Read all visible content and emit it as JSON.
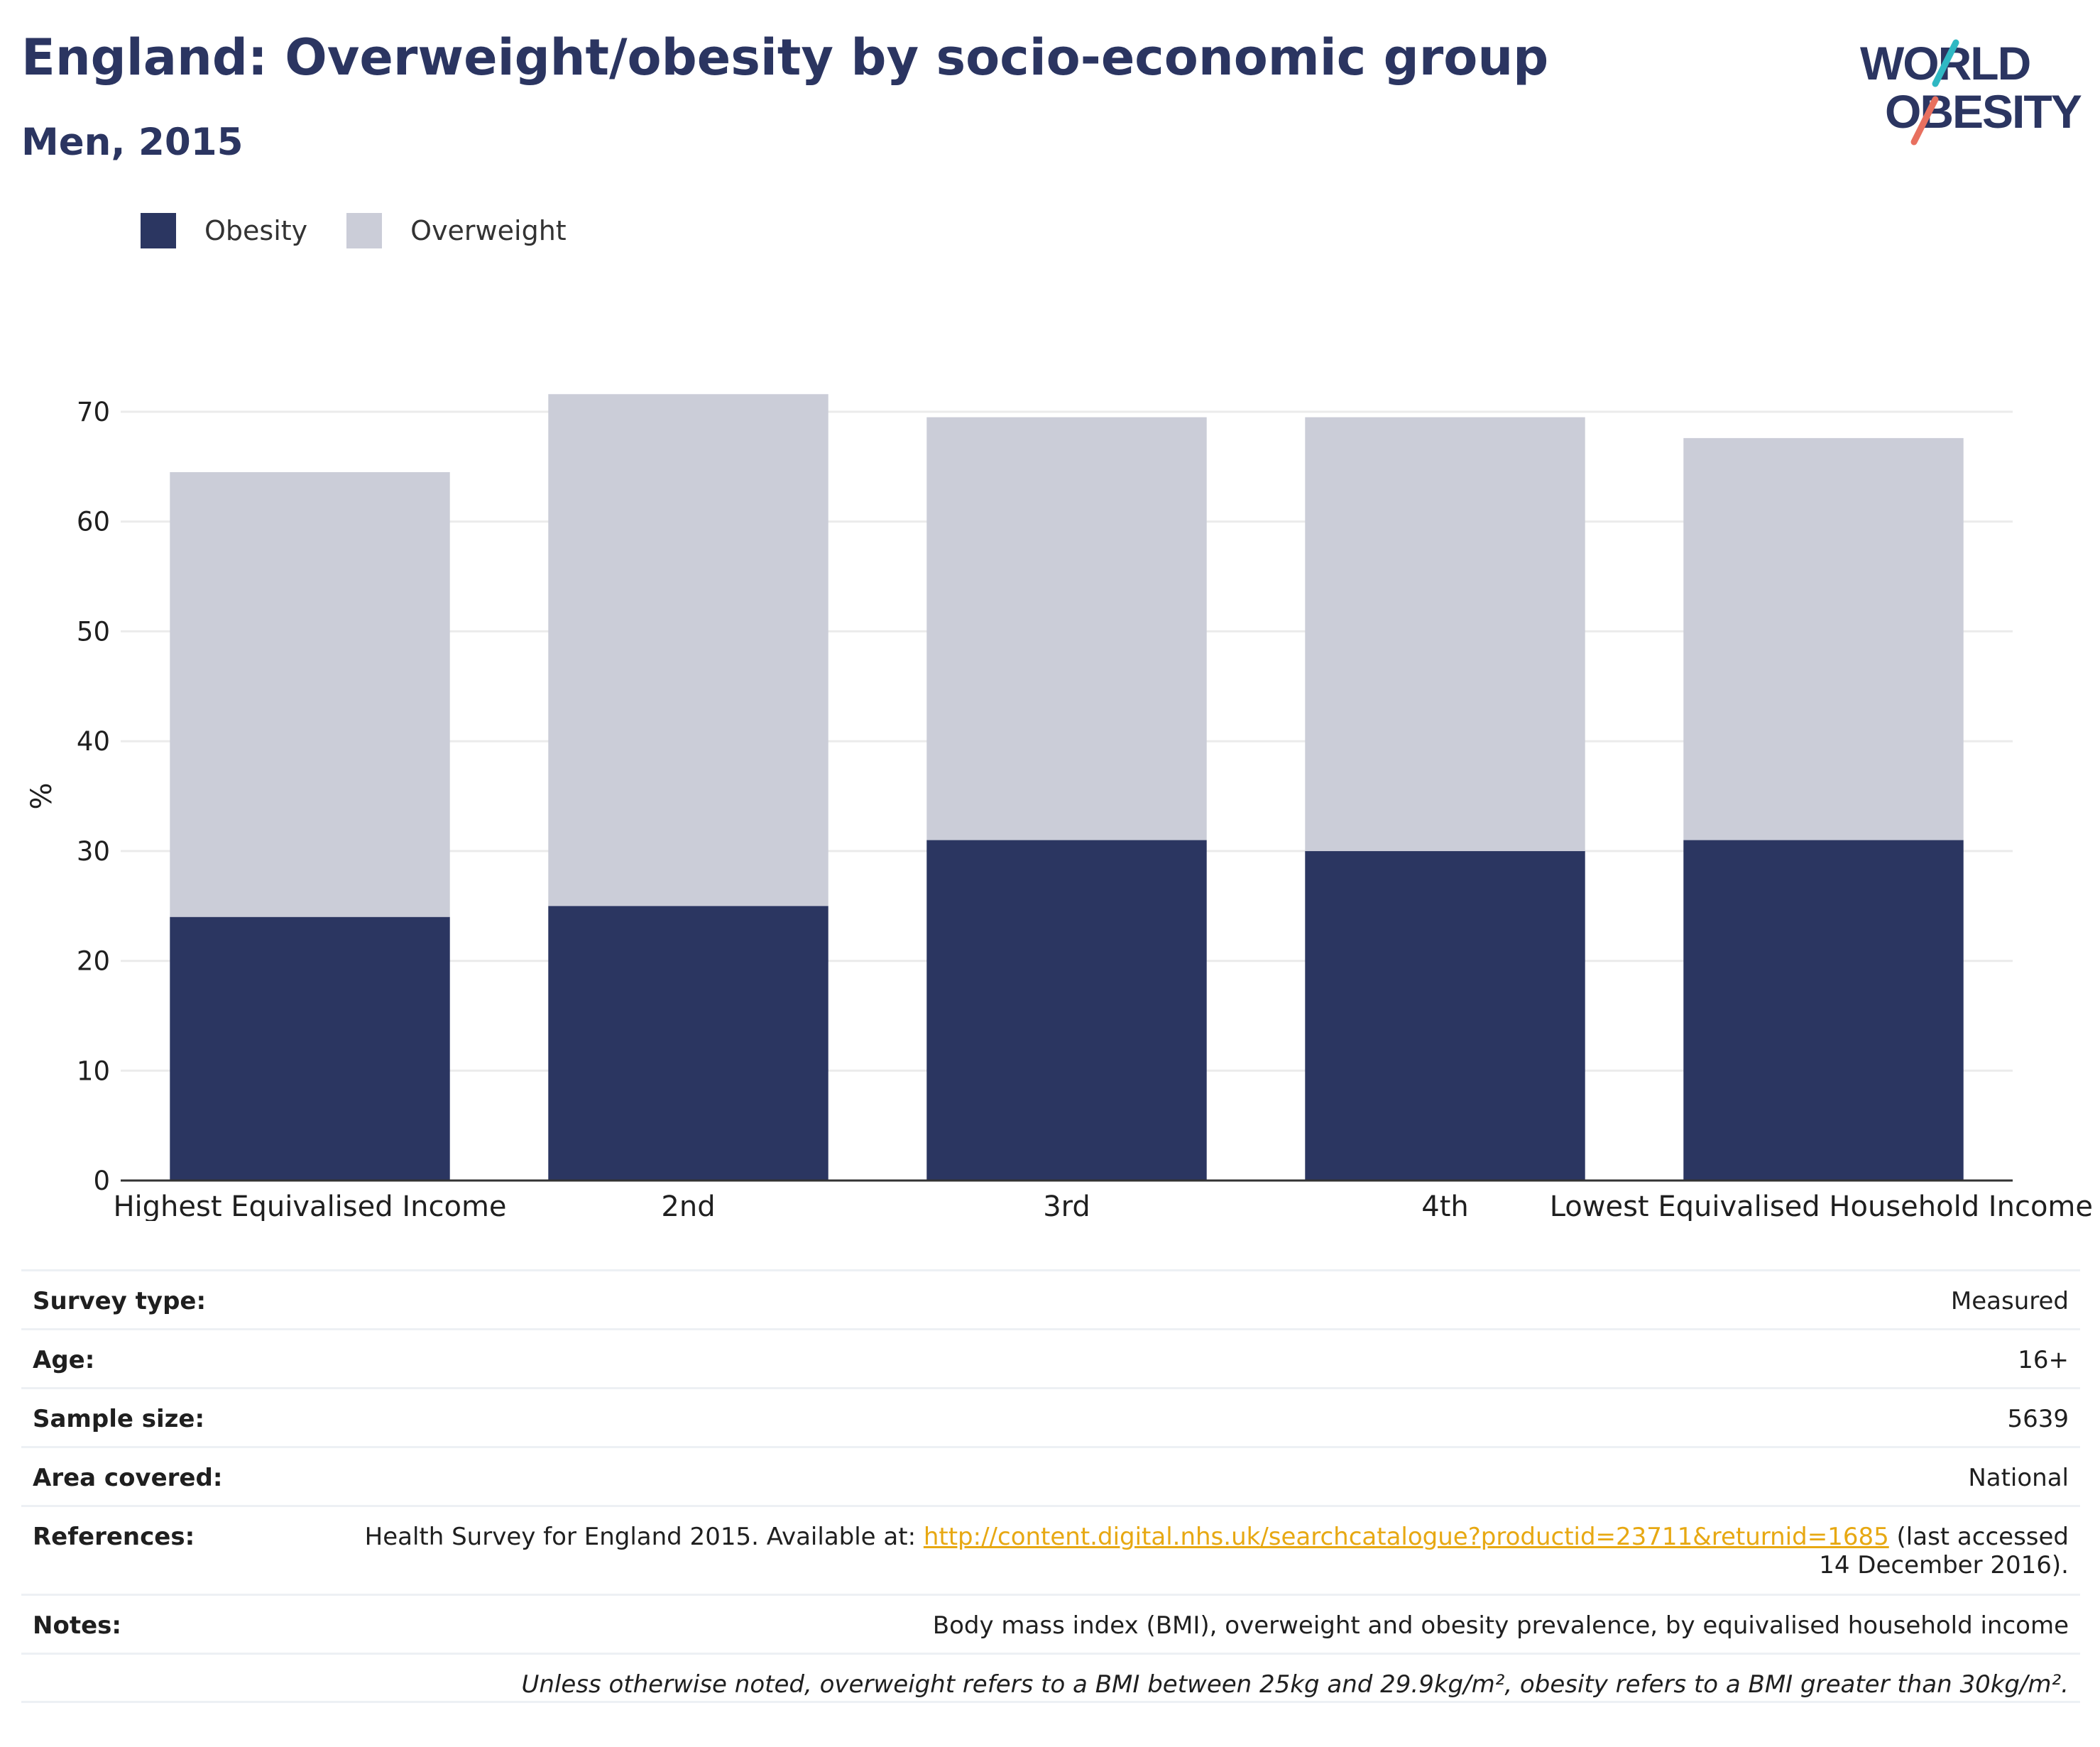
{
  "header": {
    "title": "England: Overweight/obesity by socio-economic group",
    "subtitle": "Men, 2015",
    "logo_text_top": "WORLD",
    "logo_text_bottom": "OBESITY"
  },
  "colors": {
    "obesity": "#2b3661",
    "overweight": "#cbcdd8",
    "text": "#283461",
    "link": "#e7a812",
    "logo_teal": "#2fb8c3",
    "logo_coral": "#e8705f"
  },
  "chart_data": {
    "type": "bar",
    "stacked": true,
    "categories": [
      "Highest Equivalised Income",
      "2nd",
      "3rd",
      "4th",
      "Lowest Equivalised Household Income"
    ],
    "series": [
      {
        "name": "Obesity",
        "values": [
          24,
          25,
          31,
          30,
          31
        ]
      },
      {
        "name": "Overweight",
        "values": [
          40.5,
          46.6,
          38.5,
          39.5,
          36.6
        ]
      }
    ],
    "totals": [
      64.5,
      71.6,
      69.5,
      69.5,
      67.6
    ],
    "ylabel": "%",
    "ylim": [
      0,
      70
    ],
    "yticks": [
      0,
      10,
      20,
      30,
      40,
      50,
      60,
      70
    ],
    "grid": true,
    "legend_position": "top-left"
  },
  "info": {
    "survey_type_label": "Survey type:",
    "survey_type_value": "Measured",
    "age_label": "Age:",
    "age_value": "16+",
    "sample_size_label": "Sample size:",
    "sample_size_value": "5639",
    "area_label": "Area covered:",
    "area_value": "National",
    "references_label": "References:",
    "references_prefix": "Health Survey for England 2015. Available at: ",
    "references_link": "http://content.digital.nhs.uk/searchcatalogue?productid=23711&returnid=1685",
    "references_suffix": " (last accessed 14 December 2016).",
    "notes_label": "Notes:",
    "notes_value": "Body mass index (BMI), overweight and obesity prevalence, by equivalised household income",
    "footnote": "Unless otherwise noted, overweight refers to a BMI between 25kg and 29.9kg/m², obesity refers to a BMI greater than 30kg/m²."
  }
}
